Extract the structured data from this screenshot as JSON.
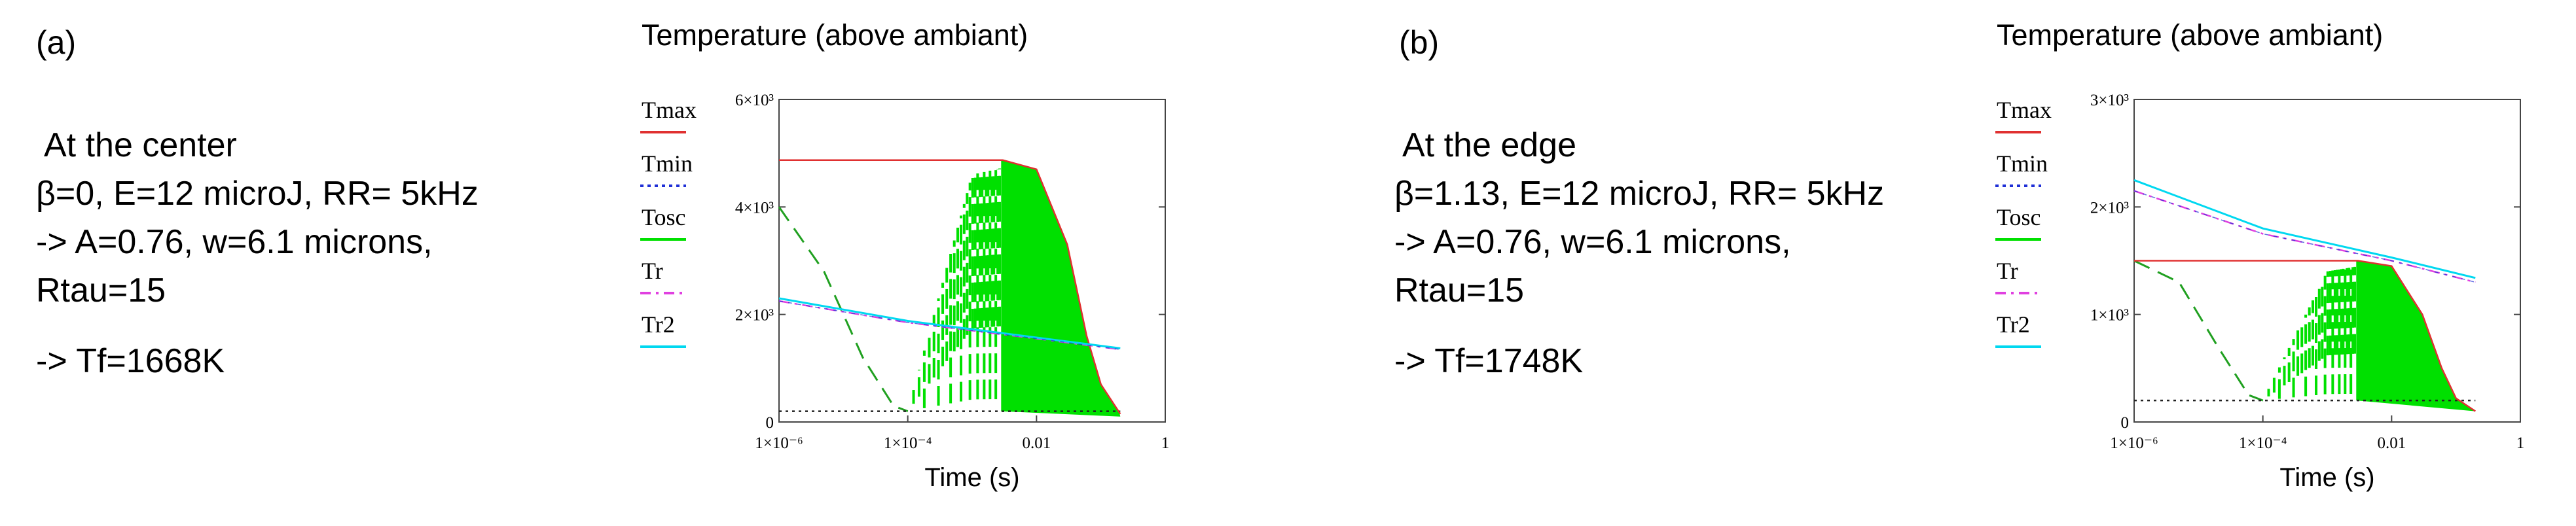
{
  "panels": [
    {
      "label": "(a)",
      "location": "At the center",
      "params": "β=0, E=12 microJ, RR= 5kHz",
      "params2": "-> A=0.76, w=6.1 microns,",
      "params3": "Rtau=15",
      "result": "-> Tf=1668K"
    },
    {
      "label": "(b)",
      "location": "At the edge",
      "params": "β=1.13, E=12 microJ, RR= 5kHz",
      "params2": "-> A=0.76, w=6.1 microns,",
      "params3": "Rtau=15",
      "result": "-> Tf=1748K"
    }
  ],
  "colors": {
    "tmax": "#e03030",
    "tmin": "#1f2fd6",
    "tosc": "#00e000",
    "tosc_edge": "#20a020",
    "tr": "#e040e0",
    "tr2": "#00d8f0",
    "frame": "#444444"
  },
  "chart_data": [
    {
      "type": "line",
      "title": "Temperature (above ambiant)",
      "xlabel": "Time (s)",
      "ylabel": "",
      "xscale": "log",
      "xlim": [
        1e-06,
        1
      ],
      "ylim": [
        0,
        6000
      ],
      "x_ticks": [
        "1×10⁻⁶",
        "1×10⁻⁴",
        "0.01",
        "1"
      ],
      "y_ticks": [
        "0",
        "2×10³",
        "4×10³",
        "6×10³"
      ],
      "grid": false,
      "legend": {
        "position": "left",
        "entries": [
          "Tmax",
          "Tmin",
          "Tosc",
          "Tr",
          "Tr2"
        ]
      },
      "series": [
        {
          "name": "Tmax",
          "x": [
            1e-06,
            0.003,
            0.01,
            0.03,
            0.06,
            0.1,
            0.2
          ],
          "y": [
            4870,
            4870,
            4700,
            3300,
            1600,
            700,
            150
          ]
        },
        {
          "name": "Tmin",
          "x": [
            1e-06,
            0.2
          ],
          "y": [
            200,
            200
          ]
        },
        {
          "name": "Tosc",
          "x": [
            1e-06,
            5e-06,
            2e-05,
            6e-05,
            0.0001,
            0.001,
            0.01,
            0.05,
            0.2
          ],
          "y": [
            4000,
            2800,
            1200,
            300,
            200,
            4600,
            4870,
            2000,
            150
          ]
        },
        {
          "name": "Tr",
          "x": [
            1e-06,
            0.0001,
            0.01,
            0.2
          ],
          "y": [
            2250,
            1850,
            1550,
            1350
          ]
        },
        {
          "name": "Tr2",
          "x": [
            1e-06,
            0.0001,
            0.01,
            0.2
          ],
          "y": [
            2300,
            1880,
            1570,
            1370
          ]
        }
      ]
    },
    {
      "type": "line",
      "title": "Temperature (above ambiant)",
      "xlabel": "Time (s)",
      "ylabel": "",
      "xscale": "log",
      "xlim": [
        1e-06,
        1
      ],
      "ylim": [
        0,
        3000
      ],
      "x_ticks": [
        "1×10⁻⁶",
        "1×10⁻⁴",
        "0.01",
        "1"
      ],
      "y_ticks": [
        "0",
        "1×10³",
        "2×10³",
        "3×10³"
      ],
      "grid": false,
      "legend": {
        "position": "left",
        "entries": [
          "Tmax",
          "Tmin",
          "Tosc",
          "Tr",
          "Tr2"
        ]
      },
      "series": [
        {
          "name": "Tmax",
          "x": [
            1e-06,
            0.003,
            0.01,
            0.03,
            0.06,
            0.1,
            0.2
          ],
          "y": [
            1500,
            1500,
            1450,
            1000,
            500,
            220,
            100
          ]
        },
        {
          "name": "Tmin",
          "x": [
            1e-06,
            0.2
          ],
          "y": [
            200,
            200
          ]
        },
        {
          "name": "Tosc",
          "x": [
            1e-06,
            5e-06,
            2e-05,
            6e-05,
            0.0001,
            0.001,
            0.01,
            0.05,
            0.2
          ],
          "y": [
            1500,
            1300,
            700,
            250,
            200,
            1400,
            1500,
            600,
            100
          ]
        },
        {
          "name": "Tr",
          "x": [
            1e-06,
            0.0001,
            0.01,
            0.2
          ],
          "y": [
            2150,
            1750,
            1500,
            1300
          ]
        },
        {
          "name": "Tr2",
          "x": [
            1e-06,
            0.0001,
            0.01,
            0.2
          ],
          "y": [
            2250,
            1800,
            1530,
            1340
          ]
        }
      ]
    }
  ]
}
